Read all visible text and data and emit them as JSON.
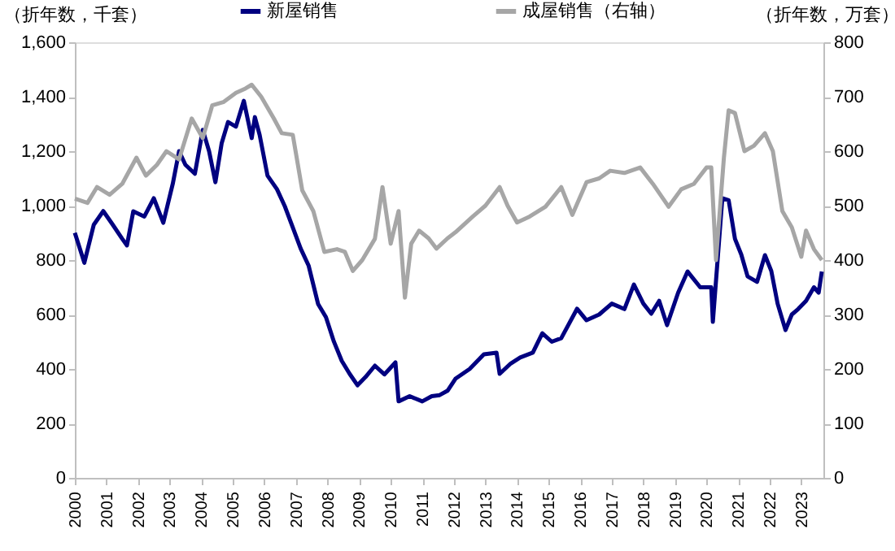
{
  "chart_data": {
    "type": "line",
    "ylabel": "（折年数，千套）",
    "y2label": "（折年数，万套）",
    "xlim": [
      2000,
      2023.7
    ],
    "xticks": [
      2000,
      2001,
      2002,
      2003,
      2004,
      2005,
      2006,
      2007,
      2008,
      2009,
      2010,
      2011,
      2012,
      2013,
      2014,
      2015,
      2016,
      2017,
      2018,
      2019,
      2020,
      2021,
      2022,
      2023
    ],
    "ylim": [
      0,
      1600
    ],
    "yticks": [
      0,
      200,
      400,
      600,
      800,
      {
        "value": 1000,
        "label": "1,000"
      },
      {
        "value": 1200,
        "label": "1,200"
      },
      {
        "value": 1400,
        "label": "1,400"
      },
      {
        "value": 1600,
        "label": "1,600"
      }
    ],
    "y2lim": [
      0,
      800
    ],
    "y2ticks": [
      0,
      100,
      200,
      300,
      400,
      500,
      600,
      700,
      800
    ],
    "grid": false,
    "legend": "top",
    "marker": "none",
    "line_style": "solid",
    "series": [
      {
        "name": "新屋销售",
        "color": "#000080",
        "x": [
          2000,
          2000.3,
          2000.6,
          2000.9,
          2001.2,
          2001.5,
          2001.65,
          2001.85,
          2002.2,
          2002.5,
          2002.8,
          2003.1,
          2003.3,
          2003.5,
          2003.8,
          2004.05,
          2004.25,
          2004.45,
          2004.65,
          2004.85,
          2005.1,
          2005.35,
          2005.6,
          2005.7,
          2005.85,
          2006.1,
          2006.4,
          2006.65,
          2006.9,
          2007.15,
          2007.4,
          2007.7,
          2007.95,
          2008.2,
          2008.45,
          2008.7,
          2008.95,
          2009.2,
          2009.5,
          2009.8,
          2010.15,
          2010.25,
          2010.6,
          2011.0,
          2011.3,
          2011.55,
          2011.8,
          2012.05,
          2012.5,
          2012.95,
          2013.35,
          2013.45,
          2013.8,
          2014.1,
          2014.5,
          2014.8,
          2015.1,
          2015.4,
          2015.9,
          2016.2,
          2016.6,
          2017.0,
          2017.4,
          2017.7,
          2018.0,
          2018.25,
          2018.5,
          2018.75,
          2019.1,
          2019.4,
          2019.8,
          2020.15,
          2020.2,
          2020.35,
          2020.5,
          2020.7,
          2020.9,
          2021.1,
          2021.3,
          2021.6,
          2021.85,
          2022.05,
          2022.25,
          2022.5,
          2022.7,
          2022.9,
          2023.15,
          2023.4,
          2023.55,
          2023.65
        ],
        "values": [
          900,
          790,
          930,
          980,
          930,
          878,
          854,
          979,
          960,
          1027,
          937,
          1080,
          1200,
          1150,
          1117,
          1278,
          1200,
          1086,
          1230,
          1307,
          1290,
          1385,
          1248,
          1325,
          1260,
          1110,
          1060,
          997,
          920,
          842,
          780,
          639,
          590,
          501,
          430,
          382,
          340,
          370,
          412,
          380,
          424,
          281,
          300,
          281,
          300,
          304,
          320,
          364,
          400,
          454,
          460,
          382,
          420,
          442,
          460,
          531,
          500,
          513,
          621,
          579,
          600,
          640,
          620,
          710,
          640,
          603,
          650,
          561,
          680,
          758,
          700,
          700,
          573,
          800,
          1027,
          1020,
          878,
          820,
          740,
          720,
          818,
          760,
          640,
          543,
          600,
          620,
          650,
          700,
          680,
          758
        ]
      },
      {
        "name": "成屋销售（右轴）",
        "color": "#a6a6a6",
        "axis": "y2",
        "x": [
          2000,
          2000.4,
          2000.7,
          2001.1,
          2001.5,
          2001.95,
          2002.25,
          2002.6,
          2002.9,
          2003.3,
          2003.7,
          2004.05,
          2004.35,
          2004.7,
          2005.1,
          2005.4,
          2005.6,
          2005.9,
          2006.3,
          2006.55,
          2006.9,
          2007.2,
          2007.55,
          2007.9,
          2008.3,
          2008.55,
          2008.8,
          2009.1,
          2009.5,
          2009.74,
          2010.0,
          2010.25,
          2010.45,
          2010.65,
          2010.9,
          2011.2,
          2011.45,
          2011.8,
          2012.05,
          2012.6,
          2013.0,
          2013.45,
          2013.7,
          2014.0,
          2014.4,
          2014.9,
          2015.4,
          2015.75,
          2016.2,
          2016.6,
          2016.95,
          2017.4,
          2017.9,
          2018.3,
          2018.8,
          2019.2,
          2019.6,
          2020.0,
          2020.15,
          2020.3,
          2020.55,
          2020.7,
          2020.9,
          2021.2,
          2021.5,
          2021.85,
          2022.1,
          2022.4,
          2022.7,
          2023.0,
          2023.15,
          2023.4,
          2023.65
        ],
        "values": [
          513,
          505,
          534,
          520,
          540,
          588,
          555,
          575,
          600,
          585,
          660,
          624,
          684,
          690,
          707,
          715,
          722,
          700,
          660,
          633,
          630,
          528,
          490,
          415,
          420,
          415,
          380,
          400,
          439,
          534,
          430,
          490,
          331,
          430,
          454,
          440,
          421,
          440,
          451,
          480,
          500,
          534,
          500,
          469,
          480,
          498,
          534,
          483,
          543,
          550,
          564,
          560,
          570,
          540,
          498,
          530,
          540,
          570,
          570,
          400,
          588,
          675,
          670,
          600,
          610,
          633,
          600,
          490,
          460,
          406,
          454,
          420,
          400
        ]
      }
    ]
  }
}
